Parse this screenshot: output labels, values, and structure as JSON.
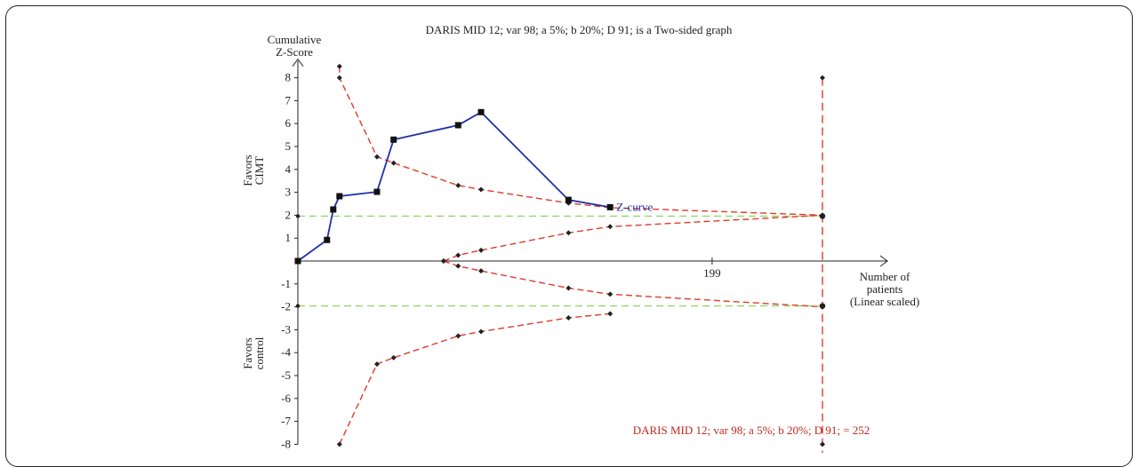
{
  "chart_data": {
    "type": "line",
    "title": "DARIS MID 12; var 98; a 5%; b 20%; D 91; is a Two-sided graph",
    "ylabel": [
      "Cumulative",
      "Z-Score"
    ],
    "xlabel": [
      "Number of",
      "patients",
      "(Linear scaled)"
    ],
    "ylim": [
      -8,
      8.5
    ],
    "xlim": [
      0,
      252
    ],
    "y_ticks": [
      "8",
      "7",
      "6",
      "5",
      "4",
      "3",
      "2",
      "1",
      "-1",
      "-2",
      "-3",
      "-4",
      "-5",
      "-6",
      "-7",
      "-8"
    ],
    "x_tick_label": "199",
    "x_tick_value": 199,
    "favors_top": [
      "Favors",
      "CIMT"
    ],
    "favors_bottom": [
      "Favors",
      "control"
    ],
    "zcurve_label": "Z-curve",
    "required_info_label": "DARIS MID 12; var 98; a 5%; b 20%; D 91; = 252",
    "required_info_size": 252,
    "conventional_boundary": 1.96,
    "zcurve": {
      "x": [
        0,
        14,
        17,
        20,
        38,
        46,
        77,
        88,
        130,
        150
      ],
      "y": [
        0,
        0.92,
        2.25,
        2.83,
        3.02,
        5.3,
        5.93,
        6.5,
        2.67,
        2.35
      ]
    },
    "upper_boundary": {
      "x": [
        20,
        20,
        38,
        46,
        77,
        88,
        130,
        150,
        252
      ],
      "y": [
        8.5,
        8.0,
        4.55,
        4.28,
        3.3,
        3.12,
        2.53,
        2.33,
        2.0
      ]
    },
    "lower_boundary": {
      "x": [
        20,
        38,
        46,
        77,
        88,
        130,
        150
      ],
      "y": [
        -8.0,
        -4.5,
        -4.22,
        -3.27,
        -3.08,
        -2.48,
        -2.3
      ]
    },
    "futility_upper": {
      "x": [
        70,
        77,
        88,
        130,
        150,
        252
      ],
      "y": [
        0,
        0.25,
        0.47,
        1.23,
        1.5,
        2.0
      ]
    },
    "futility_lower": {
      "x": [
        70,
        77,
        88,
        130,
        150,
        252
      ],
      "y": [
        0,
        -0.22,
        -0.43,
        -1.18,
        -1.45,
        -2.0
      ]
    },
    "ris_markers": [
      8,
      2,
      -2,
      -8
    ],
    "colors": {
      "zcurve": "#1f2fa8",
      "boundary": "#e03a2a",
      "conventional": "#8fd86a",
      "axis": "#222222",
      "label": "#c0281c"
    }
  }
}
